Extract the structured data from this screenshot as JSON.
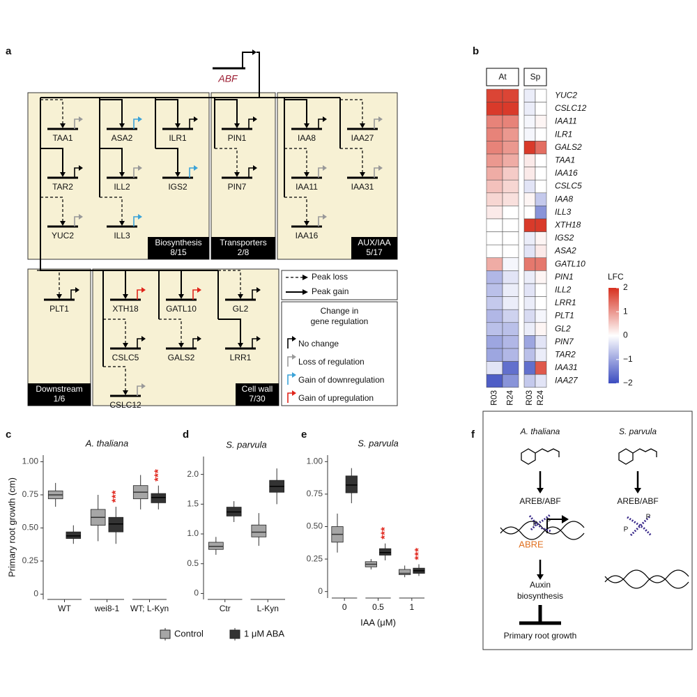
{
  "panel_labels": [
    "a",
    "b",
    "c",
    "d",
    "e",
    "f"
  ],
  "panel_a": {
    "regulator": "ABF",
    "groups": [
      {
        "name": "Biosynthesis",
        "count": "8/15"
      },
      {
        "name": "Transporters",
        "count": "2/8"
      },
      {
        "name": "AUX/IAA",
        "count": "5/17"
      },
      {
        "name": "Downstream",
        "count": "1/6"
      },
      {
        "name": "Cell wall",
        "count": "7/30"
      }
    ],
    "nodes": [
      {
        "label": "TAA1",
        "dashed": true,
        "flag": "#999999"
      },
      {
        "label": "ASA2",
        "dashed": false,
        "flag": "#3ba3d8"
      },
      {
        "label": "ILR1",
        "dashed": false,
        "flag": "#000000"
      },
      {
        "label": "TAR2",
        "dashed": false,
        "flag": "#000000"
      },
      {
        "label": "ILL2",
        "dashed": false,
        "flag": "#999999"
      },
      {
        "label": "IGS2",
        "dashed": false,
        "flag": "#3ba3d8"
      },
      {
        "label": "YUC2",
        "dashed": true,
        "flag": "#999999"
      },
      {
        "label": "ILL3",
        "dashed": true,
        "flag": "#3ba3d8"
      },
      {
        "label": "PIN1",
        "dashed": false,
        "flag": "#000000"
      },
      {
        "label": "PIN7",
        "dashed": true,
        "flag": "#000000"
      },
      {
        "label": "IAA8",
        "dashed": false,
        "flag": "#000000"
      },
      {
        "label": "IAA27",
        "dashed": true,
        "flag": "#999999"
      },
      {
        "label": "IAA11",
        "dashed": true,
        "flag": "#999999"
      },
      {
        "label": "IAA31",
        "dashed": true,
        "flag": "#999999"
      },
      {
        "label": "IAA16",
        "dashed": true,
        "flag": "#999999"
      },
      {
        "label": "PLT1",
        "dashed": true,
        "flag": "#000000"
      },
      {
        "label": "XTH18",
        "dashed": false,
        "flag": "#e0251b"
      },
      {
        "label": "GATL10",
        "dashed": false,
        "flag": "#e0251b"
      },
      {
        "label": "GL2",
        "dashed": true,
        "flag": "#000000"
      },
      {
        "label": "CSLC5",
        "dashed": true,
        "flag": "#000000"
      },
      {
        "label": "GALS2",
        "dashed": true,
        "flag": "#000000"
      },
      {
        "label": "LRR1",
        "dashed": false,
        "flag": "#000000"
      },
      {
        "label": "CSLC12",
        "dashed": true,
        "flag": "#999999"
      }
    ],
    "legend_edges": [
      {
        "label": "Peak loss",
        "dashed": true
      },
      {
        "label": "Peak gain",
        "dashed": false
      }
    ],
    "legend_title": [
      "Change in",
      "gene regulation"
    ],
    "legend_flags": [
      {
        "label": "No change",
        "color": "#000000"
      },
      {
        "label": "Loss of regulation",
        "color": "#999999"
      },
      {
        "label": "Gain of downregulation",
        "color": "#3ba3d8"
      },
      {
        "label": "Gain of upregulation",
        "color": "#e0251b"
      }
    ]
  },
  "box_legend": [
    {
      "name": "Control",
      "color": "#a6a6a6"
    },
    {
      "name": "1 μM ABA",
      "color": "#333333"
    }
  ],
  "chart_data": [
    {
      "type": "heatmap",
      "groups": [
        "At",
        "Sp"
      ],
      "columns": [
        "R03",
        "R24",
        "R03",
        "R24"
      ],
      "rows": [
        "YUC2",
        "CSLC12",
        "IAA11",
        "ILR1",
        "GALS2",
        "TAA1",
        "IAA16",
        "CSLC5",
        "IAA8",
        "ILL3",
        "XTH18",
        "IGS2",
        "ASA2",
        "GATL10",
        "PIN1",
        "ILL2",
        "LRR1",
        "PLT1",
        "GL2",
        "PIN7",
        "TAR2",
        "IAA31",
        "IAA27"
      ],
      "values": [
        [
          1.8,
          1.8,
          -0.2,
          0
        ],
        [
          1.9,
          1.9,
          -0.2,
          0
        ],
        [
          1.2,
          1.2,
          -0.1,
          0.1
        ],
        [
          1.2,
          1.0,
          -0.1,
          0
        ],
        [
          1.2,
          1.0,
          1.9,
          1.4
        ],
        [
          1.0,
          0.8,
          0.2,
          0
        ],
        [
          0.8,
          0.5,
          0.2,
          0
        ],
        [
          0.6,
          0.4,
          -0.3,
          0
        ],
        [
          0.4,
          0.3,
          0.1,
          -0.6
        ],
        [
          0.2,
          0,
          0,
          -1.2
        ],
        [
          0,
          0,
          1.9,
          1.9
        ],
        [
          0,
          0,
          -0.2,
          0.1
        ],
        [
          0,
          0,
          -0.3,
          0.2
        ],
        [
          0.8,
          -0.1,
          1.3,
          1.3
        ],
        [
          -0.8,
          -0.3,
          -0.2,
          0.1
        ],
        [
          -0.7,
          -0.2,
          -0.3,
          0
        ],
        [
          -0.6,
          -0.2,
          -0.2,
          0
        ],
        [
          -0.8,
          -0.5,
          -0.4,
          -0.1
        ],
        [
          -0.7,
          -0.7,
          -0.2,
          0.1
        ],
        [
          -1.0,
          -0.8,
          -1.0,
          -0.3
        ],
        [
          -1.0,
          -0.8,
          -0.7,
          -0.2
        ],
        [
          -0.3,
          -1.6,
          -1.6,
          1.6
        ],
        [
          -1.8,
          -1.2,
          -0.6,
          -0.3
        ]
      ],
      "zlim": [
        -2,
        2
      ],
      "zticks": [
        2,
        1,
        0,
        {
          "value": -1,
          "label": "−1"
        },
        {
          "value": -2,
          "label": "−2"
        }
      ],
      "colorbar_label": "LFC",
      "colors": [
        "#3b4cc0",
        "#ffffff",
        "#d7301f"
      ]
    },
    {
      "type": "box",
      "title": "A. thaliana",
      "ylabel": "Primary root growth (cm)",
      "categories": [
        "WT",
        "wei8-1",
        "WT; L-Kyn"
      ],
      "ylim": [
        -0.04,
        1.05
      ],
      "yticks": [
        0,
        0.25,
        {
          "value": 0.5,
          "label": "0.50"
        },
        0.75,
        {
          "value": 1,
          "label": "1.00"
        }
      ],
      "series": [
        {
          "values": [
            {
              "min": 0.66,
              "q1": 0.72,
              "median": 0.75,
              "q3": 0.78,
              "max": 0.84
            },
            {
              "min": 0.4,
              "q1": 0.52,
              "median": 0.58,
              "q3": 0.64,
              "max": 0.75
            },
            {
              "min": 0.64,
              "q1": 0.72,
              "median": 0.77,
              "q3": 0.82,
              "max": 0.9
            }
          ]
        },
        {
          "values": [
            {
              "min": 0.38,
              "q1": 0.42,
              "median": 0.44,
              "q3": 0.47,
              "max": 0.52
            },
            {
              "min": 0.38,
              "q1": 0.47,
              "median": 0.53,
              "q3": 0.58,
              "max": 0.66
            },
            {
              "min": 0.64,
              "q1": 0.69,
              "median": 0.73,
              "q3": 0.76,
              "max": 0.82
            }
          ]
        }
      ],
      "annotations": [
        {
          "category": "wei8-1",
          "text": "***"
        },
        {
          "category": "WT; L-Kyn",
          "text": "***"
        }
      ]
    },
    {
      "type": "box",
      "title": "S. parvula",
      "categories": [
        "Ctr",
        "L-Kyn"
      ],
      "ylim": [
        -0.1,
        2.3
      ],
      "yticks": [
        0,
        0.5,
        {
          "value": 1,
          "label": "1.0"
        },
        1.5,
        {
          "value": 2,
          "label": "2.0"
        }
      ],
      "series": [
        {
          "values": [
            {
              "min": 0.65,
              "q1": 0.74,
              "median": 0.79,
              "q3": 0.86,
              "max": 0.95
            },
            {
              "min": 0.8,
              "q1": 0.95,
              "median": 1.03,
              "q3": 1.15,
              "max": 1.35
            }
          ]
        },
        {
          "values": [
            {
              "min": 1.2,
              "q1": 1.3,
              "median": 1.37,
              "q3": 1.45,
              "max": 1.55
            },
            {
              "min": 1.5,
              "q1": 1.7,
              "median": 1.8,
              "q3": 1.9,
              "max": 2.1
            }
          ]
        }
      ],
      "annotations": []
    },
    {
      "type": "box",
      "title": "S. parvula",
      "xlabel": "IAA (μM)",
      "categories": [
        "0",
        "0.5",
        "1"
      ],
      "ylim": [
        -0.05,
        1.05
      ],
      "yticks": [
        0,
        0.25,
        {
          "value": 0.5,
          "label": "0.50"
        },
        0.75,
        {
          "value": 1,
          "label": "1.00"
        }
      ],
      "series": [
        {
          "values": [
            {
              "min": 0.3,
              "q1": 0.38,
              "median": 0.44,
              "q3": 0.5,
              "max": 0.6
            },
            {
              "min": 0.17,
              "q1": 0.19,
              "median": 0.21,
              "q3": 0.23,
              "max": 0.25
            },
            {
              "min": 0.11,
              "q1": 0.13,
              "median": 0.14,
              "q3": 0.17,
              "max": 0.2
            }
          ]
        },
        {
          "values": [
            {
              "min": 0.68,
              "q1": 0.76,
              "median": 0.82,
              "q3": 0.89,
              "max": 0.95
            },
            {
              "min": 0.24,
              "q1": 0.28,
              "median": 0.3,
              "q3": 0.33,
              "max": 0.37
            },
            {
              "min": 0.12,
              "q1": 0.14,
              "median": 0.16,
              "q3": 0.18,
              "max": 0.21
            }
          ]
        }
      ],
      "annotations": [
        {
          "category": "0.5",
          "text": "***"
        },
        {
          "category": "1",
          "text": "***"
        }
      ]
    }
  ],
  "panel_f": {
    "left_title": "A. thaliana",
    "right_title": "S. parvula",
    "factor": "AREB/ABF",
    "phospho": "P",
    "element": "ABRE",
    "process": [
      "Auxin",
      "biosynthesis"
    ],
    "outcome": "Primary root growth"
  }
}
